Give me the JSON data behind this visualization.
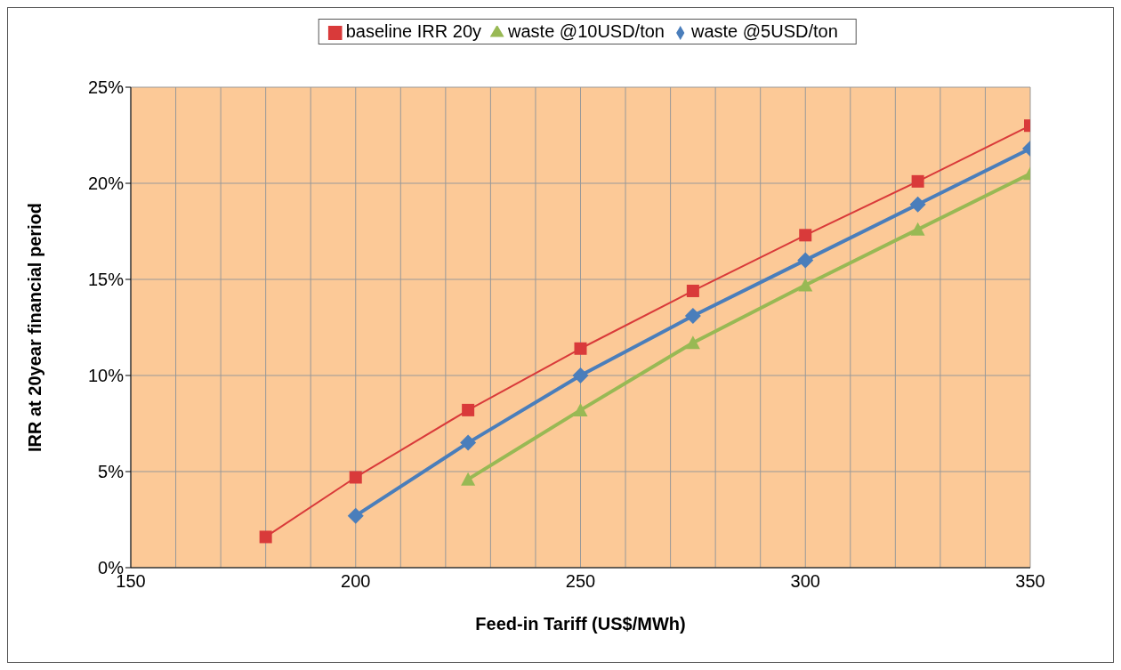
{
  "chart_data": {
    "type": "line",
    "xlabel": "Feed-in Tariff  (US$/MWh)",
    "ylabel": "IRR at 20year financial period",
    "xlim": [
      150,
      350
    ],
    "xticks": [
      150,
      {
        "value": 160,
        "label": null
      },
      {
        "value": 170,
        "label": null
      },
      {
        "value": 180,
        "label": null
      },
      {
        "value": 190,
        "label": null
      },
      200,
      {
        "value": 210,
        "label": null
      },
      {
        "value": 220,
        "label": null
      },
      {
        "value": 230,
        "label": null
      },
      {
        "value": 240,
        "label": null
      },
      250,
      {
        "value": 260,
        "label": null
      },
      {
        "value": 270,
        "label": null
      },
      {
        "value": 280,
        "label": null
      },
      {
        "value": 290,
        "label": null
      },
      300,
      {
        "value": 310,
        "label": null
      },
      {
        "value": 320,
        "label": null
      },
      {
        "value": 330,
        "label": null
      },
      {
        "value": 340,
        "label": null
      },
      350
    ],
    "ylim": [
      0,
      25
    ],
    "yticks": [
      {
        "value": 0,
        "label": "0%"
      },
      {
        "value": 5,
        "label": "5%"
      },
      {
        "value": 10,
        "label": "10%"
      },
      {
        "value": 15,
        "label": "15%"
      },
      {
        "value": 20,
        "label": "20%"
      },
      {
        "value": 25,
        "label": "25%"
      }
    ],
    "grid": true,
    "legend": "top",
    "line_style": "solid",
    "series": [
      {
        "name": "baseline IRR 20y",
        "color": "#d93a3a",
        "marker": "square",
        "x": [
          180,
          200,
          225,
          250,
          275,
          300,
          325,
          350
        ],
        "values": [
          1.6,
          4.7,
          8.2,
          11.4,
          14.4,
          17.3,
          20.1,
          23.0
        ]
      },
      {
        "name": "waste @5USD/ton",
        "color": "#4a7ebb",
        "marker": "diamond",
        "x": [
          200,
          225,
          250,
          275,
          300,
          325,
          350
        ],
        "values": [
          2.7,
          6.5,
          10.0,
          13.1,
          16.0,
          18.9,
          21.8
        ]
      },
      {
        "name": "waste @10USD/ton",
        "color": "#98b954",
        "marker": "triangle",
        "x": [
          225,
          250,
          275,
          300,
          325,
          350
        ],
        "values": [
          4.6,
          8.2,
          11.7,
          14.7,
          17.6,
          20.5
        ]
      }
    ]
  }
}
